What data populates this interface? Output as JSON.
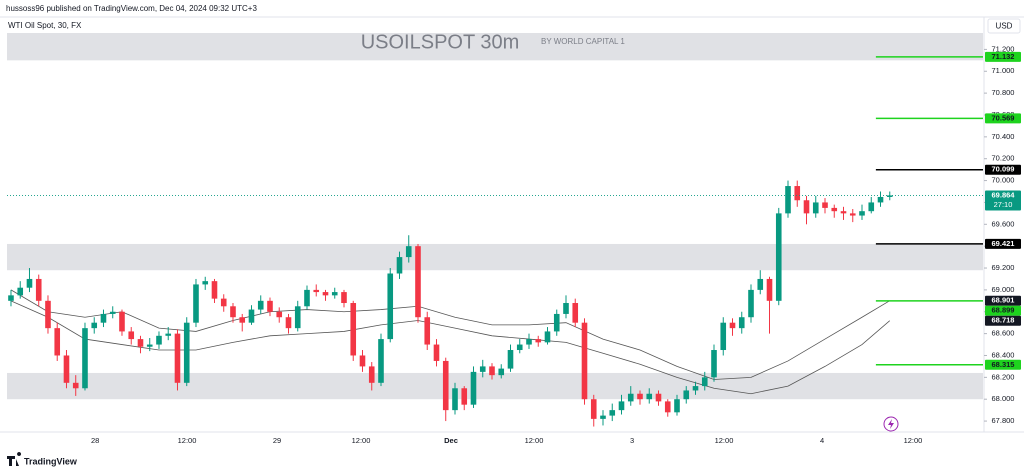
{
  "header": {
    "published": "hussoss96 published on TradingView.com, Dec 04, 2024 09:32 UTC+3",
    "symbol": "WTI Oil Spot, 30, FX",
    "currency": "USD",
    "watermark": "USOILSPOT 30m",
    "watermark_sub": "BY WORLD CAPITAL 1",
    "brand": "TradingView"
  },
  "chart_data": {
    "type": "candlestick",
    "up_color": "#089981",
    "down_color": "#f23645",
    "ylim": [
      67.7,
      71.35
    ],
    "xlim": [
      -0.43,
      105.08
    ],
    "yticks": [
      {
        "value": 67.8,
        "label": "67.800"
      },
      {
        "value": 68.0,
        "label": "68.000"
      },
      {
        "value": 68.2,
        "label": "68.200"
      },
      {
        "value": 68.4,
        "label": "68.400"
      },
      {
        "value": 68.6,
        "label": "68.600"
      },
      {
        "value": 68.8,
        "label": "68.800"
      },
      {
        "value": 69.0,
        "label": "69.000"
      },
      {
        "value": 69.2,
        "label": "69.200"
      },
      {
        "value": 69.4,
        "label": "69.400"
      },
      {
        "value": 69.6,
        "label": "69.600"
      },
      {
        "value": 69.8,
        "label": "69.800"
      },
      {
        "value": 70.0,
        "label": "70.000"
      },
      {
        "value": 70.2,
        "label": "70.200"
      },
      {
        "value": 70.4,
        "label": "70.400"
      },
      {
        "value": 70.6,
        "label": "70.600"
      },
      {
        "value": 70.8,
        "label": "70.800"
      },
      {
        "value": 71.0,
        "label": "71.000"
      },
      {
        "value": 71.2,
        "label": "71.200"
      }
    ],
    "xticks": [
      {
        "value": 9.1,
        "label": "28"
      },
      {
        "value": 19.03,
        "label": "12:00"
      },
      {
        "value": 28.76,
        "label": "29"
      },
      {
        "value": 37.84,
        "label": "12:00"
      },
      {
        "value": 47.57,
        "label": "Dec"
      },
      {
        "value": 56.54,
        "label": "12:00"
      },
      {
        "value": 67.14,
        "label": "3"
      },
      {
        "value": 77.08,
        "label": "12:00"
      },
      {
        "value": 87.68,
        "label": "4"
      },
      {
        "value": 97.51,
        "label": "12:00"
      }
    ],
    "ohlc": [
      [
        68.9,
        69.0,
        68.85,
        68.95
      ],
      [
        68.95,
        69.08,
        68.92,
        69.02
      ],
      [
        69.02,
        69.2,
        68.98,
        69.1
      ],
      [
        69.1,
        69.14,
        68.85,
        68.9
      ],
      [
        68.9,
        68.95,
        68.6,
        68.65
      ],
      [
        68.65,
        68.7,
        68.35,
        68.4
      ],
      [
        68.4,
        68.45,
        68.1,
        68.15
      ],
      [
        68.15,
        68.22,
        68.03,
        68.1
      ],
      [
        68.1,
        68.7,
        68.08,
        68.65
      ],
      [
        68.65,
        68.75,
        68.6,
        68.7
      ],
      [
        68.7,
        68.82,
        68.66,
        68.78
      ],
      [
        68.78,
        68.85,
        68.74,
        68.8
      ],
      [
        68.8,
        68.82,
        68.58,
        68.62
      ],
      [
        68.62,
        68.66,
        68.5,
        68.55
      ],
      [
        68.55,
        68.58,
        68.42,
        68.48
      ],
      [
        68.48,
        68.56,
        68.44,
        68.5
      ],
      [
        68.5,
        68.62,
        68.46,
        68.58
      ],
      [
        68.58,
        68.66,
        68.54,
        68.6
      ],
      [
        68.6,
        68.64,
        68.08,
        68.15
      ],
      [
        68.15,
        68.75,
        68.12,
        68.7
      ],
      [
        68.7,
        69.1,
        68.66,
        69.05
      ],
      [
        69.05,
        69.12,
        69.0,
        69.08
      ],
      [
        69.08,
        69.1,
        68.88,
        68.92
      ],
      [
        68.92,
        68.96,
        68.8,
        68.85
      ],
      [
        68.85,
        68.88,
        68.7,
        68.75
      ],
      [
        68.75,
        68.78,
        68.62,
        68.7
      ],
      [
        68.7,
        68.86,
        68.68,
        68.82
      ],
      [
        68.82,
        68.95,
        68.78,
        68.9
      ],
      [
        68.9,
        68.93,
        68.76,
        68.8
      ],
      [
        68.8,
        68.84,
        68.7,
        68.75
      ],
      [
        68.75,
        68.78,
        68.6,
        68.65
      ],
      [
        68.65,
        68.9,
        68.62,
        68.85
      ],
      [
        68.85,
        69.04,
        68.82,
        69.0
      ],
      [
        69.0,
        69.05,
        68.94,
        68.98
      ],
      [
        68.98,
        69.0,
        68.9,
        68.95
      ],
      [
        68.95,
        69.02,
        68.92,
        68.98
      ],
      [
        68.98,
        69.0,
        68.84,
        68.88
      ],
      [
        68.88,
        68.9,
        68.35,
        68.4
      ],
      [
        68.4,
        68.45,
        68.25,
        68.3
      ],
      [
        68.3,
        68.34,
        68.08,
        68.15
      ],
      [
        68.15,
        68.6,
        68.12,
        68.55
      ],
      [
        68.55,
        69.2,
        68.52,
        69.15
      ],
      [
        69.15,
        69.35,
        69.1,
        69.3
      ],
      [
        69.3,
        69.5,
        69.25,
        69.4
      ],
      [
        69.4,
        69.42,
        68.7,
        68.75
      ],
      [
        68.75,
        68.8,
        68.45,
        68.5
      ],
      [
        68.5,
        68.55,
        68.3,
        68.35
      ],
      [
        68.35,
        68.38,
        67.8,
        67.9
      ],
      [
        67.9,
        68.15,
        67.86,
        68.1
      ],
      [
        68.1,
        68.12,
        67.9,
        67.95
      ],
      [
        67.95,
        68.3,
        67.92,
        68.25
      ],
      [
        68.25,
        68.36,
        68.2,
        68.3
      ],
      [
        68.3,
        68.33,
        68.18,
        68.22
      ],
      [
        68.22,
        68.32,
        68.19,
        68.28
      ],
      [
        68.28,
        68.5,
        68.25,
        68.45
      ],
      [
        68.45,
        68.55,
        68.42,
        68.5
      ],
      [
        68.5,
        68.6,
        68.46,
        68.55
      ],
      [
        68.55,
        68.58,
        68.48,
        68.52
      ],
      [
        68.52,
        68.66,
        68.5,
        68.62
      ],
      [
        68.62,
        68.82,
        68.58,
        68.78
      ],
      [
        68.78,
        68.95,
        68.74,
        68.88
      ],
      [
        68.88,
        68.92,
        68.66,
        68.7
      ],
      [
        68.7,
        68.74,
        67.95,
        68.0
      ],
      [
        68.0,
        68.04,
        67.75,
        67.82
      ],
      [
        67.82,
        67.9,
        67.76,
        67.85
      ],
      [
        67.85,
        67.96,
        67.8,
        67.9
      ],
      [
        67.9,
        68.04,
        67.86,
        67.98
      ],
      [
        67.98,
        68.12,
        67.94,
        68.05
      ],
      [
        68.05,
        68.08,
        67.95,
        68.0
      ],
      [
        68.0,
        68.1,
        67.96,
        68.05
      ],
      [
        68.05,
        68.08,
        67.94,
        67.98
      ],
      [
        67.98,
        68.0,
        67.84,
        67.88
      ],
      [
        67.88,
        68.04,
        67.85,
        68.0
      ],
      [
        68.0,
        68.12,
        67.96,
        68.08
      ],
      [
        68.08,
        68.16,
        68.04,
        68.12
      ],
      [
        68.12,
        68.25,
        68.08,
        68.2
      ],
      [
        68.2,
        68.5,
        68.16,
        68.45
      ],
      [
        68.45,
        68.75,
        68.4,
        68.7
      ],
      [
        68.7,
        68.74,
        68.58,
        68.65
      ],
      [
        68.65,
        68.8,
        68.6,
        68.75
      ],
      [
        68.75,
        69.05,
        68.7,
        69.0
      ],
      [
        69.0,
        69.18,
        68.96,
        69.1
      ],
      [
        69.1,
        69.12,
        68.6,
        68.9
      ],
      [
        68.9,
        69.75,
        68.86,
        69.7
      ],
      [
        69.7,
        70.0,
        69.66,
        69.95
      ],
      [
        69.95,
        70.0,
        69.76,
        69.82
      ],
      [
        69.82,
        69.86,
        69.6,
        69.7
      ],
      [
        69.7,
        69.86,
        69.66,
        69.8
      ],
      [
        69.8,
        69.84,
        69.7,
        69.75
      ],
      [
        69.75,
        69.78,
        69.66,
        69.72
      ],
      [
        69.72,
        69.76,
        69.64,
        69.7
      ],
      [
        69.7,
        69.74,
        69.62,
        69.68
      ],
      [
        69.68,
        69.78,
        69.64,
        69.72
      ],
      [
        69.72,
        69.85,
        69.7,
        69.8
      ],
      [
        69.8,
        69.9,
        69.76,
        69.85
      ],
      [
        69.85,
        69.9,
        69.82,
        69.864
      ]
    ],
    "moving_averages": {
      "color": "#555555",
      "index": [
        0,
        4,
        8,
        12,
        16,
        20,
        24,
        28,
        32,
        36,
        40,
        44,
        48,
        52,
        56,
        60,
        64,
        68,
        72,
        76,
        80,
        84,
        88,
        92,
        95
      ],
      "lines": [
        [
          69.0,
          68.8,
          68.75,
          68.8,
          68.65,
          68.62,
          68.72,
          68.8,
          68.82,
          68.8,
          68.82,
          68.85,
          68.75,
          68.68,
          68.68,
          68.7,
          68.55,
          68.45,
          68.3,
          68.18,
          68.2,
          68.35,
          68.55,
          68.75,
          68.901
        ],
        [
          68.9,
          68.75,
          68.55,
          68.5,
          68.45,
          68.45,
          68.52,
          68.58,
          68.6,
          68.62,
          68.68,
          68.72,
          68.65,
          68.58,
          68.55,
          68.52,
          68.42,
          68.32,
          68.2,
          68.1,
          68.05,
          68.12,
          68.3,
          68.5,
          68.718
        ]
      ]
    },
    "zones": [
      [
        71.1,
        71.35
      ],
      [
        69.18,
        69.42
      ],
      [
        68.0,
        68.24
      ]
    ],
    "zone_color": "#e0e1e5",
    "levels": [
      {
        "value": 71.132,
        "color": "#1ed31e"
      },
      {
        "value": 70.569,
        "color": "#1ed31e"
      },
      {
        "value": 70.099,
        "color": "#000000"
      },
      {
        "value": 69.421,
        "color": "#000000"
      },
      {
        "value": 68.899,
        "color": "#1ed31e"
      },
      {
        "value": 68.315,
        "color": "#1ed31e"
      }
    ],
    "level_start_index": 93.5,
    "current_color": "#089981",
    "countdown": "27:10"
  }
}
